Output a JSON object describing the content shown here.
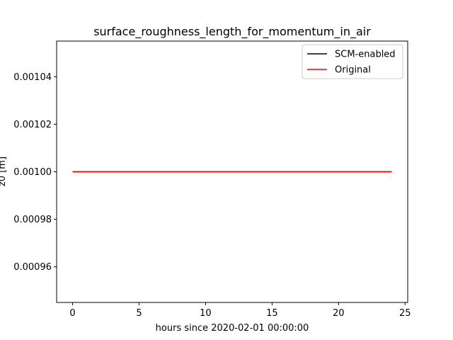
{
  "chart_data": {
    "type": "line",
    "title": "surface_roughness_length_for_momentum_in_air",
    "xlabel": "hours since 2020-02-01 00:00:00",
    "ylabel": "z0 [m]",
    "xlim": [
      -1.2,
      25.2
    ],
    "ylim": [
      0.000945,
      0.001055
    ],
    "xticks": [
      0,
      5,
      10,
      15,
      20,
      25
    ],
    "yticks": [
      0.00096,
      0.00098,
      0.001,
      0.00102,
      0.00104
    ],
    "ytick_labels": [
      "0.00096",
      "0.00098",
      "0.00100",
      "0.00102",
      "0.00104"
    ],
    "legend_position": "upper right",
    "grid": false,
    "series": [
      {
        "name": "SCM-enabled",
        "color": "#000000",
        "x": [
          0,
          24
        ],
        "y": [
          0.001,
          0.001
        ]
      },
      {
        "name": "Original",
        "color": "#ff0000",
        "x": [
          0,
          24
        ],
        "y": [
          0.001,
          0.001
        ]
      }
    ]
  }
}
